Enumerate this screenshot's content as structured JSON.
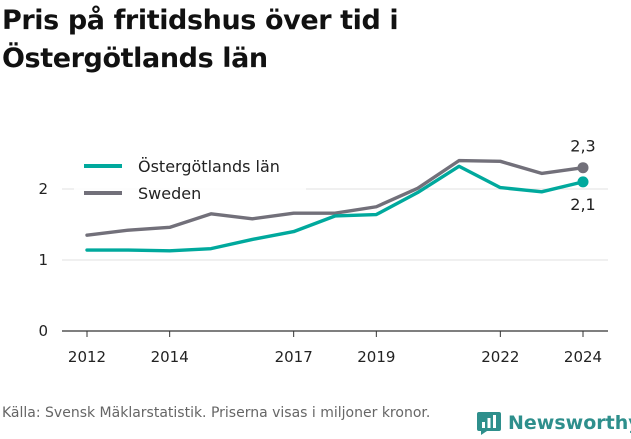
{
  "title": "Pris på fritidshus över tid i Östergötlands län",
  "source": "Källa: Svensk Mäklarstatistik. Priserna visas i miljoner kronor.",
  "brand": {
    "name": "Newsworthy",
    "icon": "newsworthy-logo-icon",
    "color": "#2e8f8c"
  },
  "chart_data": {
    "type": "line",
    "title": "Pris på fritidshus över tid i Östergötlands län",
    "xlabel": "",
    "ylabel": "",
    "x": [
      2012,
      2013,
      2014,
      2015,
      2016,
      2017,
      2018,
      2019,
      2020,
      2021,
      2022,
      2023,
      2024
    ],
    "x_ticks": [
      "2012",
      "2014",
      "2017",
      "2019",
      "2022",
      "2024"
    ],
    "y_ticks": [
      "0",
      "1",
      "2"
    ],
    "ylim": [
      0,
      2.6
    ],
    "xlim": [
      2012,
      2024
    ],
    "grid": true,
    "legend_position": "top-left",
    "series": [
      {
        "name": "Östergötlands län",
        "color": "#00a99d",
        "values": [
          1.14,
          1.14,
          1.13,
          1.16,
          1.29,
          1.4,
          1.62,
          1.64,
          1.95,
          2.32,
          2.02,
          1.96,
          2.1
        ],
        "end_label": "2,1"
      },
      {
        "name": "Sweden",
        "color": "#72707a",
        "values": [
          1.35,
          1.42,
          1.46,
          1.65,
          1.58,
          1.66,
          1.66,
          1.75,
          2.01,
          2.4,
          2.39,
          2.22,
          2.3
        ],
        "end_label": "2,3"
      }
    ]
  }
}
